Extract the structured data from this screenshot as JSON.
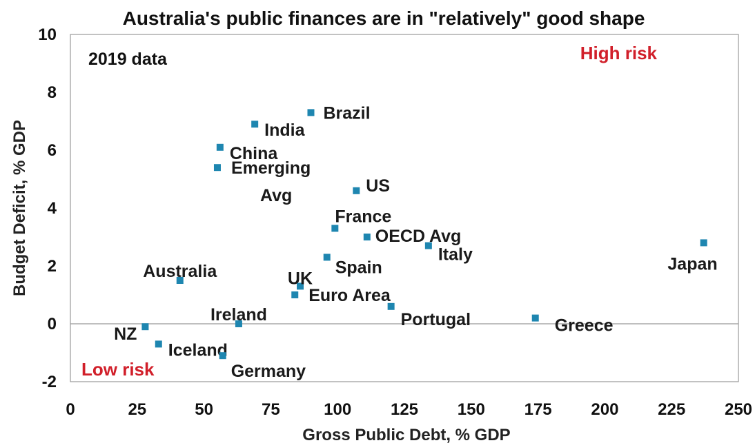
{
  "colors": {
    "marker": "#1e86b0",
    "risk": "#d11f2a",
    "axis": "#111111",
    "zero_line": "#999999"
  },
  "chart_data": {
    "type": "scatter",
    "title": "Australia's public finances are in \"relatively\" good shape",
    "annotation": "2019 data",
    "high_risk_label": "High risk",
    "low_risk_label": "Low risk",
    "xlabel": "Gross Public Debt, % GDP",
    "ylabel": "Budget Deficit, % GDP",
    "xlim": [
      0,
      250
    ],
    "ylim": [
      -2,
      10
    ],
    "xticks": [
      "0",
      "25",
      "50",
      "75",
      "100",
      "125",
      "150",
      "175",
      "200",
      "225",
      "250"
    ],
    "yticks": [
      "-2",
      "0",
      "2",
      "4",
      "6",
      "8",
      "10"
    ],
    "legend": "none",
    "grid": false,
    "points": [
      {
        "label": "Brazil",
        "x": 90,
        "y": 7.3
      },
      {
        "label": "India",
        "x": 69,
        "y": 6.9
      },
      {
        "label": "China",
        "x": 56,
        "y": 6.1
      },
      {
        "label": "Emerging Avg",
        "label_lines": [
          "Emerging",
          "Avg"
        ],
        "x": 55,
        "y": 5.4
      },
      {
        "label": "US",
        "x": 107,
        "y": 4.6
      },
      {
        "label": "France",
        "x": 99,
        "y": 3.3
      },
      {
        "label": "OECD Avg",
        "x": 111,
        "y": 3.0
      },
      {
        "label": "Italy",
        "x": 134,
        "y": 2.7
      },
      {
        "label": "Japan",
        "x": 237,
        "y": 2.8
      },
      {
        "label": "Spain",
        "x": 96,
        "y": 2.3
      },
      {
        "label": "Australia",
        "x": 41,
        "y": 1.5
      },
      {
        "label": "UK",
        "x": 86,
        "y": 1.3
      },
      {
        "label": "Euro Area",
        "x": 84,
        "y": 1.0
      },
      {
        "label": "Portugal",
        "x": 120,
        "y": 0.6
      },
      {
        "label": "Greece",
        "x": 174,
        "y": 0.2
      },
      {
        "label": "Ireland",
        "x": 63,
        "y": 0.0
      },
      {
        "label": "NZ",
        "x": 28,
        "y": -0.1
      },
      {
        "label": "Iceland",
        "x": 33,
        "y": -0.7
      },
      {
        "label": "Germany",
        "x": 57,
        "y": -1.1
      }
    ]
  }
}
